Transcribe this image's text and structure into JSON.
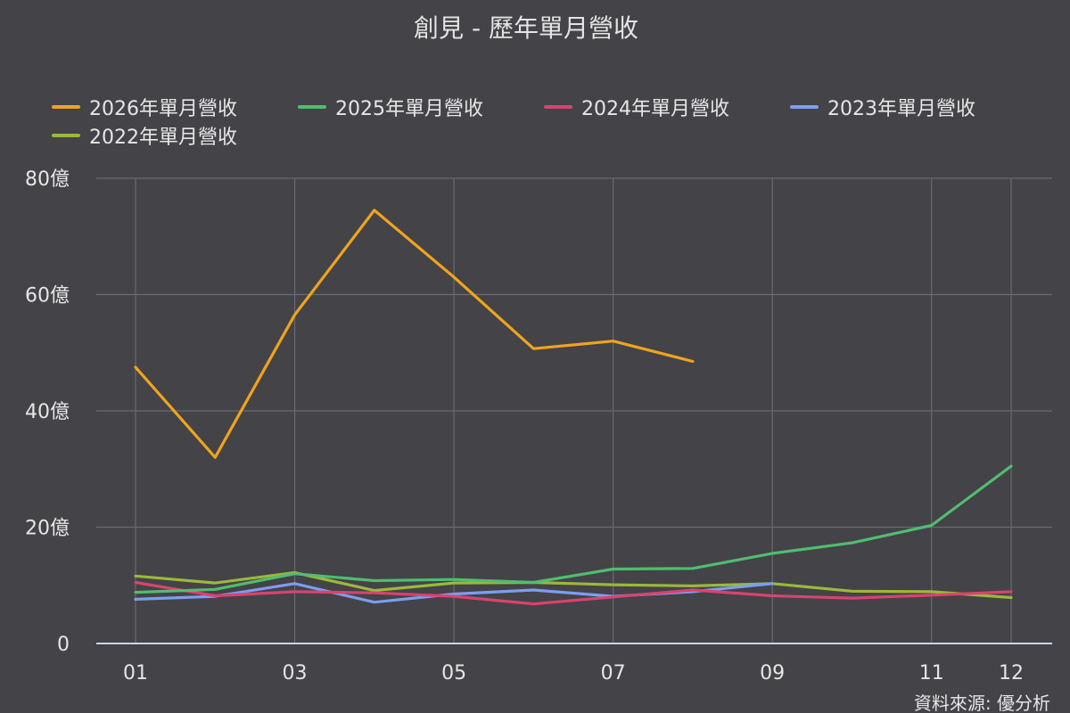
{
  "chart_data": {
    "type": "line",
    "title": "創見 - 歷年單月營收",
    "x": [
      "01",
      "02",
      "03",
      "04",
      "05",
      "06",
      "07",
      "08",
      "09",
      "10",
      "11",
      "12"
    ],
    "x_tick_labels": [
      "01",
      "03",
      "05",
      "07",
      "09",
      "11",
      "12"
    ],
    "ylim": [
      0,
      80
    ],
    "y_ticks": [
      0,
      20,
      40,
      60,
      80
    ],
    "y_tick_labels": [
      "0",
      "20億",
      "40億",
      "60億",
      "80億"
    ],
    "grid": true,
    "legend_position": "top",
    "series": [
      {
        "name": "2026年單月營收",
        "color": "#f0a41c",
        "values": [
          47.5,
          32,
          56.5,
          74.5,
          63,
          50.7,
          52,
          48.5,
          null,
          null,
          null,
          null
        ]
      },
      {
        "name": "2025年單月營收",
        "color": "#50bd70",
        "values": [
          8.8,
          9.3,
          12,
          10.8,
          11,
          10.5,
          12.8,
          12.9,
          15.5,
          17.3,
          20.3,
          30.5
        ]
      },
      {
        "name": "2024年單月營收",
        "color": "#d9436f",
        "values": [
          10.5,
          8.2,
          8.9,
          8.7,
          8.1,
          6.8,
          8,
          9.2,
          8.2,
          7.8,
          8.3,
          8.9
        ]
      },
      {
        "name": "2023年單月營收",
        "color": "#7b9ef0",
        "values": [
          7.6,
          8.1,
          10.3,
          7.1,
          8.5,
          9.2,
          8.1,
          8.9,
          10.3,
          null,
          null,
          9.1
        ]
      },
      {
        "name": "2022年單月營收",
        "color": "#9bb83a",
        "values": [
          11.6,
          10.4,
          12.2,
          9.1,
          10.4,
          10.5,
          10.1,
          9.9,
          10.3,
          9,
          8.9,
          7.9
        ]
      }
    ],
    "source": "資料來源: 優分析"
  }
}
